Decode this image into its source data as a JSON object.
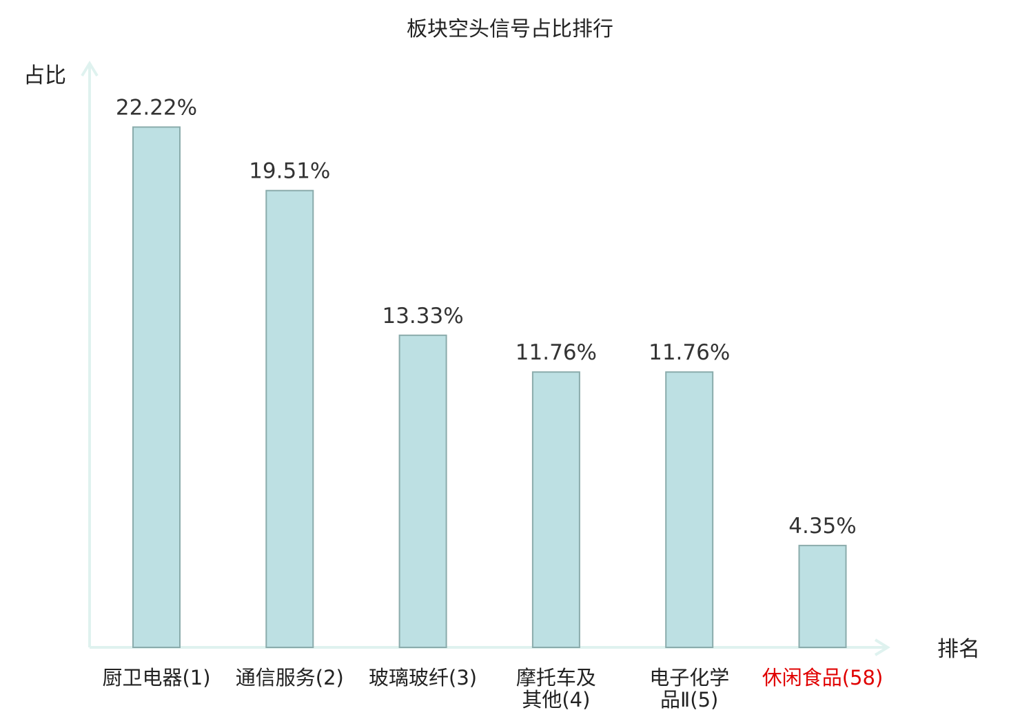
{
  "chart_data": {
    "type": "bar",
    "title": "板块空头信号占比排行",
    "xlabel": "排名",
    "ylabel": "占比",
    "categories": [
      [
        "厨卫电器(1)"
      ],
      [
        "通信服务(2)"
      ],
      [
        "玻璃玻纤(3)"
      ],
      [
        "摩托车及",
        "其他(4)"
      ],
      [
        "电子化学",
        "品Ⅱ(5)"
      ],
      [
        "休闲食品(58)"
      ]
    ],
    "values": [
      22.22,
      19.51,
      13.33,
      11.76,
      11.76,
      4.35
    ],
    "value_labels": [
      "22.22%",
      "19.51%",
      "13.33%",
      "11.76%",
      "11.76%",
      "4.35%"
    ],
    "highlight_index": 5,
    "ylim": [
      0,
      25
    ],
    "grid": false,
    "legend": "none",
    "colors": {
      "bar_fill": "#bde0e3",
      "bar_stroke": "#8aabab",
      "axis": "#dff2ef",
      "text": "#222222",
      "value_label": "#333333",
      "highlight_text": "#e00000"
    }
  }
}
